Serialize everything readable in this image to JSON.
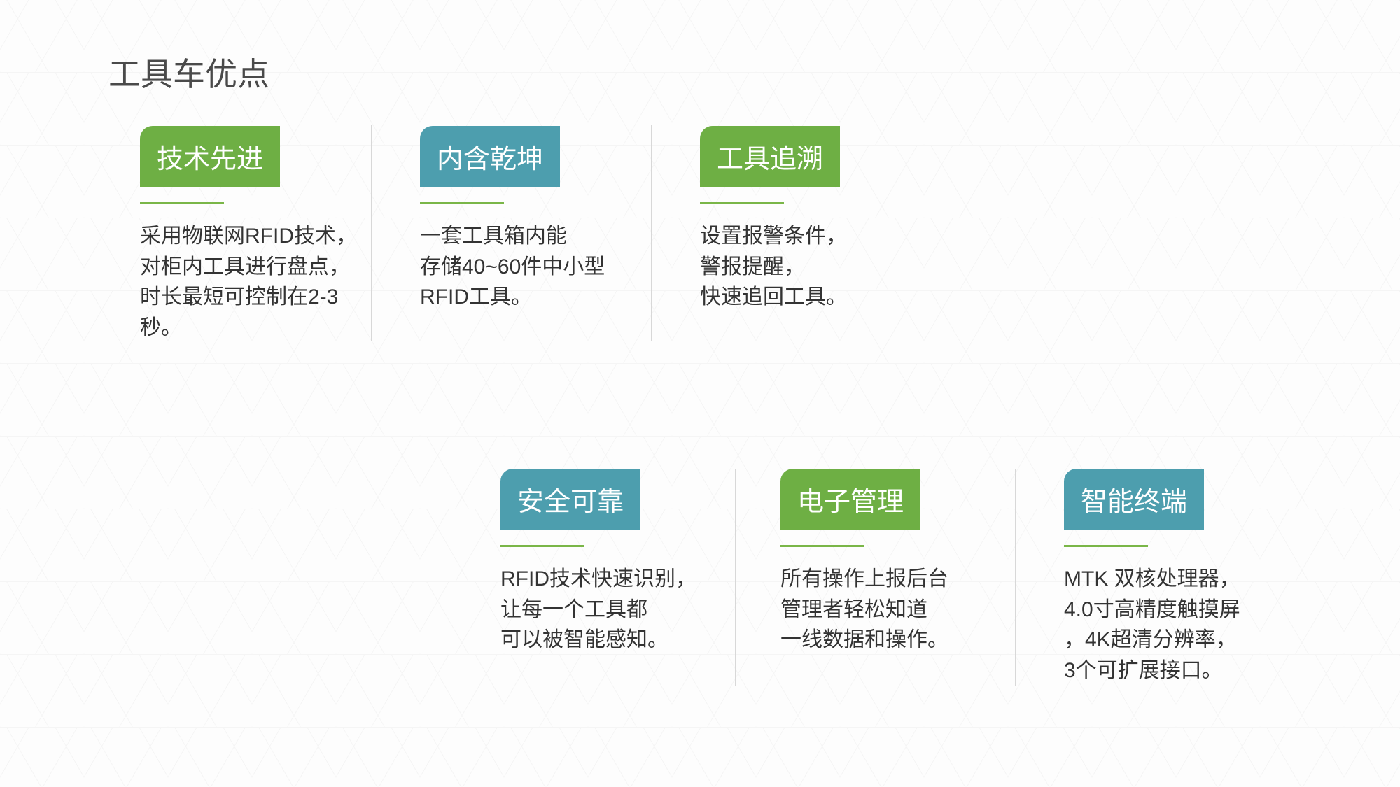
{
  "page": {
    "title": "工具车优点",
    "background_color": "#fdfdfd",
    "pattern_color": "#f5f5f5"
  },
  "colors": {
    "green": "#6eaf44",
    "teal": "#4d9eae",
    "divider": "#7ab648",
    "separator": "#d8d8d8",
    "title_text": "#4a4a4a",
    "body_text": "#333333"
  },
  "layout": {
    "type": "infographic",
    "rows": 2,
    "cards_per_row": 3,
    "badge_fontsize": 38,
    "body_fontsize": 30,
    "title_fontsize": 46,
    "badge_border_radius_tl": 18
  },
  "cards": [
    {
      "id": 1,
      "badge_label": "技术先进",
      "badge_color": "green",
      "description": "采用物联网RFID技术，\n对柜内工具进行盘点，\n时长最短可控制在2-3秒。",
      "row": 1
    },
    {
      "id": 2,
      "badge_label": "内含乾坤",
      "badge_color": "teal",
      "description": "一套工具箱内能\n存储40~60件中小型\nRFID工具。",
      "row": 1
    },
    {
      "id": 3,
      "badge_label": "工具追溯",
      "badge_color": "green",
      "description": "设置报警条件，\n警报提醒，\n快速追回工具。",
      "row": 1
    },
    {
      "id": 4,
      "badge_label": "安全可靠",
      "badge_color": "teal",
      "description": "RFID技术快速识别，\n让每一个工具都\n可以被智能感知。",
      "row": 2
    },
    {
      "id": 5,
      "badge_label": "电子管理",
      "badge_color": "green",
      "description": "所有操作上报后台\n管理者轻松知道\n一线数据和操作。",
      "row": 2
    },
    {
      "id": 6,
      "badge_label": "智能终端",
      "badge_color": "teal",
      "description": "MTK 双核处理器，\n4.0寸高精度触摸屏\n，4K超清分辨率，\n3个可扩展接口。",
      "row": 2
    }
  ]
}
